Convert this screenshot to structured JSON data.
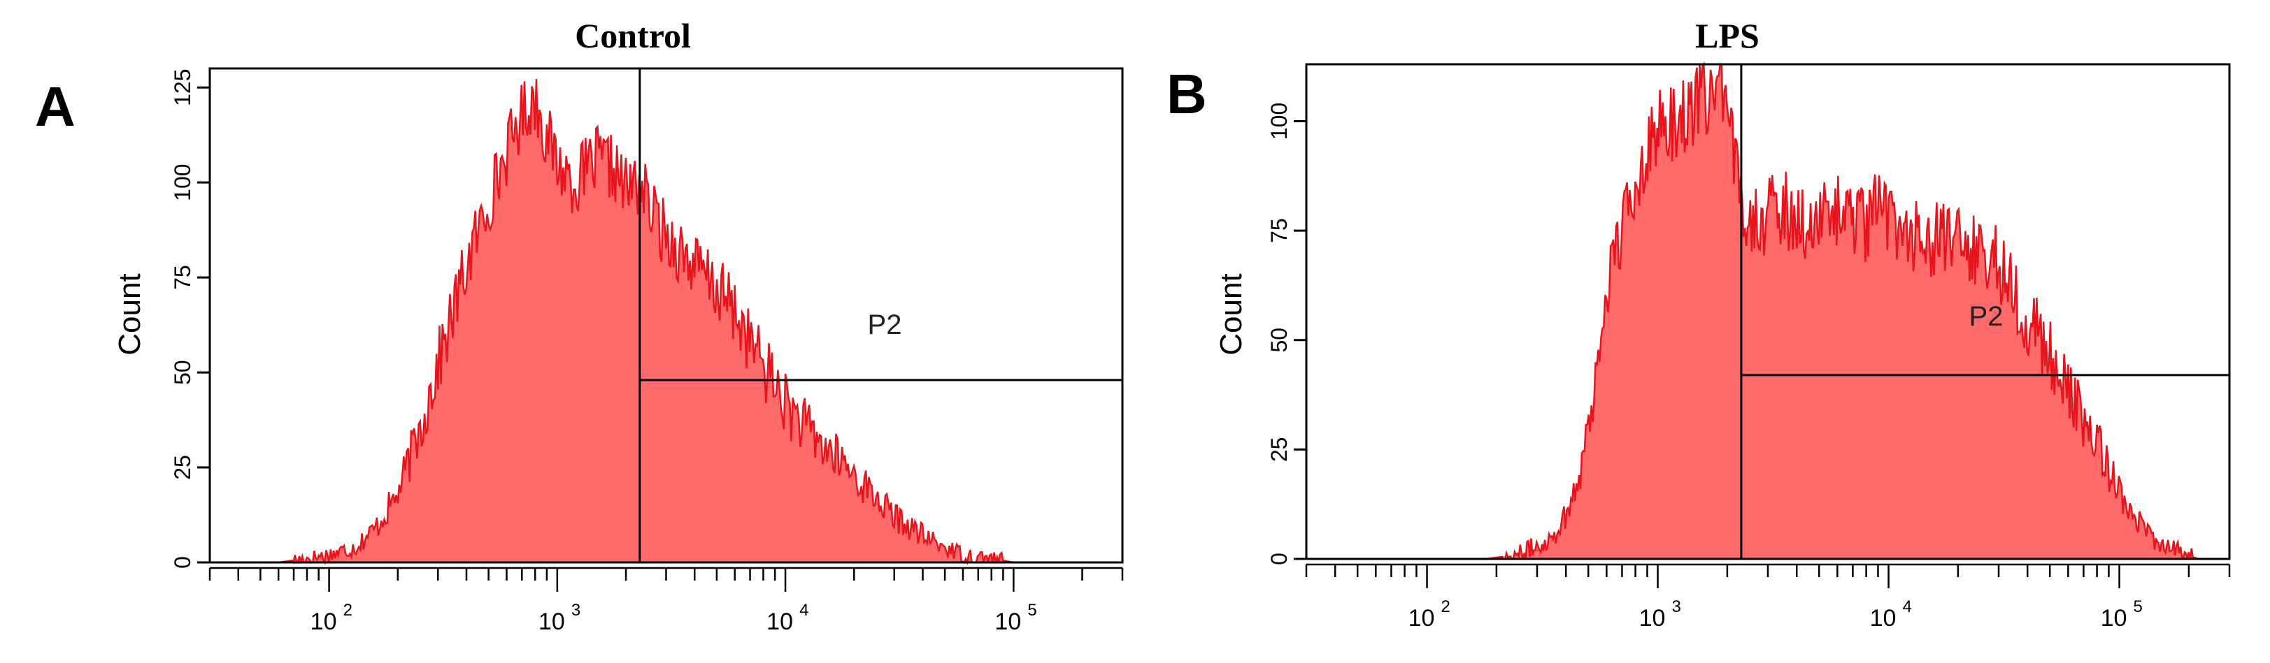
{
  "chart_data": [
    {
      "type": "area",
      "panel_label": "A",
      "title": "Control",
      "ylabel": "Count",
      "xlabel": "",
      "x_scale": "log",
      "xlim": [
        30,
        300000
      ],
      "ylim": [
        0,
        130
      ],
      "yticks": [
        0,
        25,
        50,
        75,
        100,
        125
      ],
      "ytick_labels": [
        "0",
        "25",
        "50",
        "75",
        "100",
        "125"
      ],
      "xticks": [
        100,
        1000,
        10000,
        100000
      ],
      "xtick_labels": [
        {
          "base": "10",
          "exp": "2"
        },
        {
          "base": "10",
          "exp": "3"
        },
        {
          "base": "10",
          "exp": "4"
        },
        {
          "base": "10",
          "exp": "5"
        }
      ],
      "fill_color": "#ff6b6b",
      "line_color": "#e8141c",
      "x": [
        60,
        80,
        100,
        130,
        160,
        200,
        250,
        300,
        400,
        500,
        600,
        700,
        800,
        900,
        1000,
        1200,
        1500,
        1800,
        2000,
        2300,
        2600,
        3000,
        3500,
        4000,
        5000,
        6000,
        7000,
        8000,
        9000,
        10000,
        12000,
        15000,
        18000,
        20000,
        25000,
        30000,
        40000,
        50000,
        60000,
        80000,
        100000,
        150000
      ],
      "y": [
        0,
        1,
        2,
        4,
        9,
        18,
        35,
        52,
        78,
        95,
        108,
        118,
        122,
        112,
        105,
        100,
        106,
        103,
        98,
        100,
        92,
        86,
        82,
        78,
        72,
        66,
        58,
        52,
        47,
        42,
        36,
        30,
        26,
        23,
        17,
        12,
        7,
        4,
        2,
        1,
        0,
        0
      ],
      "gate": {
        "label": "P2",
        "start_x": 2300,
        "y": 48
      }
    },
    {
      "type": "area",
      "panel_label": "B",
      "title": "LPS",
      "ylabel": "Count",
      "xlabel": "",
      "x_scale": "log",
      "xlim": [
        30,
        300000
      ],
      "ylim": [
        0,
        113
      ],
      "yticks": [
        0,
        25,
        50,
        75,
        100
      ],
      "ytick_labels": [
        "0",
        "25",
        "50",
        "75",
        "100"
      ],
      "xticks": [
        100,
        1000,
        10000,
        100000
      ],
      "xtick_labels": [
        {
          "base": "10",
          "exp": "2"
        },
        {
          "base": "10",
          "exp": "3"
        },
        {
          "base": "10",
          "exp": "4"
        },
        {
          "base": "10",
          "exp": "5"
        }
      ],
      "fill_color": "#ff6b6b",
      "line_color": "#e8141c",
      "x": [
        180,
        250,
        300,
        350,
        400,
        450,
        500,
        550,
        600,
        700,
        800,
        900,
        1000,
        1200,
        1500,
        1800,
        2000,
        2200,
        2400,
        2800,
        3500,
        4000,
        5000,
        6000,
        7000,
        8000,
        9000,
        10000,
        12000,
        15000,
        18000,
        20000,
        25000,
        30000,
        35000,
        40000,
        50000,
        60000,
        80000,
        100000,
        130000,
        170000,
        220000
      ],
      "y": [
        0,
        1,
        3,
        5,
        10,
        18,
        30,
        45,
        62,
        75,
        85,
        95,
        98,
        100,
        104,
        108,
        100,
        88,
        80,
        78,
        80,
        78,
        76,
        80,
        78,
        76,
        80,
        78,
        75,
        73,
        72,
        72,
        70,
        68,
        62,
        55,
        46,
        38,
        26,
        16,
        6,
        2,
        0
      ],
      "gate": {
        "label": "P2",
        "start_x": 2300,
        "y": 42
      }
    }
  ]
}
